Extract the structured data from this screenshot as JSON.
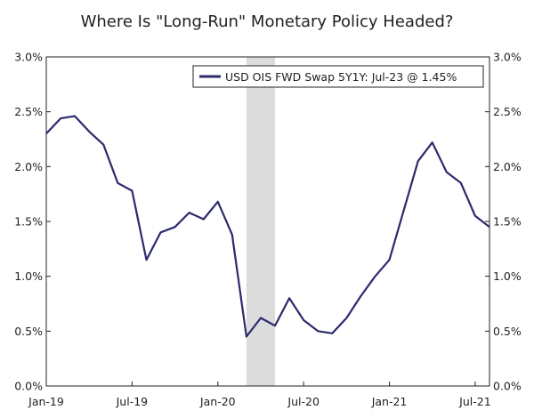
{
  "chart_data": {
    "type": "line",
    "title": "Where Is \"Long-Run\" Monetary Policy Headed?",
    "xlabel": "",
    "ylabel": "",
    "ylim": [
      0,
      3.0
    ],
    "y_ticks": [
      "0.0%",
      "0.5%",
      "1.0%",
      "1.5%",
      "2.0%",
      "2.5%",
      "3.0%"
    ],
    "y_tick_values": [
      0,
      0.5,
      1.0,
      1.5,
      2.0,
      2.5,
      3.0
    ],
    "x_ticks": [
      "Jan-19",
      "Jul-19",
      "Jan-20",
      "Jul-20",
      "Jan-21",
      "Jul-21"
    ],
    "x_tick_months": [
      "2019-01",
      "2019-07",
      "2020-01",
      "2020-07",
      "2021-01",
      "2021-07"
    ],
    "xlim": [
      "2019-01",
      "2021-08"
    ],
    "legend_placement": "top-right",
    "line_color": "#2b2a6e",
    "shade_color": "#dcdcdc",
    "shaded_region": [
      "2020-03",
      "2020-05"
    ],
    "series": [
      {
        "name": "USD OIS FWD Swap 5Y1Y: Jul-23 @ 1.45%",
        "x": [
          "2019-01",
          "2019-02",
          "2019-03",
          "2019-04",
          "2019-05",
          "2019-06",
          "2019-07",
          "2019-08",
          "2019-09",
          "2019-10",
          "2019-11",
          "2019-12",
          "2020-01",
          "2020-02",
          "2020-03",
          "2020-04",
          "2020-05",
          "2020-06",
          "2020-07",
          "2020-08",
          "2020-09",
          "2020-10",
          "2020-11",
          "2020-12",
          "2021-01",
          "2021-02",
          "2021-03",
          "2021-04",
          "2021-05",
          "2021-06",
          "2021-07",
          "2021-08"
        ],
        "values": [
          2.3,
          2.44,
          2.46,
          2.32,
          2.2,
          1.85,
          1.78,
          1.15,
          1.4,
          1.45,
          1.58,
          1.52,
          1.68,
          1.38,
          0.45,
          0.62,
          0.55,
          0.8,
          0.6,
          0.5,
          0.48,
          0.62,
          0.82,
          1.0,
          1.15,
          1.6,
          2.05,
          2.22,
          1.95,
          1.85,
          1.55,
          1.45
        ]
      }
    ]
  }
}
